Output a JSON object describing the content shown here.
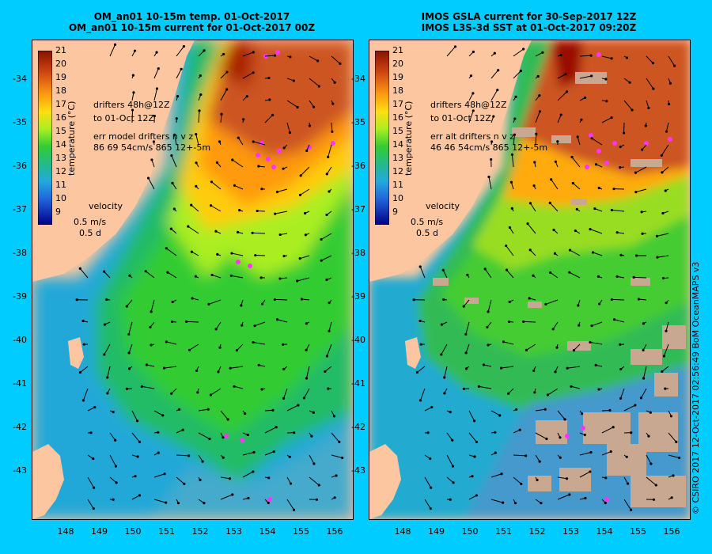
{
  "left_title": {
    "line1": "OM_an01 10-15m temp. 01-Oct-2017",
    "line2": "OM_an01 10-15m current for 01-Oct-2017 00Z"
  },
  "right_title": {
    "line1": "IMOS GSLA current for 30-Sep-2017 12Z",
    "line2": "IMOS L3S-3d SST at 01-Oct-2017 09:20Z"
  },
  "y_ticks": [
    "-34",
    "-35",
    "-36",
    "-37",
    "-38",
    "-39",
    "-40",
    "-41",
    "-42",
    "-43"
  ],
  "x_ticks": [
    "148",
    "149",
    "150",
    "151",
    "152",
    "153",
    "154",
    "155",
    "156"
  ],
  "colorbar": {
    "label": "temperature (°C)",
    "ticks": [
      "21",
      "20",
      "19",
      "18",
      "17",
      "16",
      "15",
      "14",
      "13",
      "12",
      "11",
      "10",
      "9"
    ]
  },
  "left_legend": {
    "drifters1": "drifters 48h@12Z",
    "drifters2": "to 01-Oct 12Z",
    "err1": "err model drifters n v z",
    "err2": "86 69 54cm/s 865 12+-5m",
    "velocity": "velocity",
    "scale": "0.5 m/s",
    "days": "0.5 d"
  },
  "right_legend": {
    "drifters1": "drifters 48h@12Z",
    "drifters2": "to 01-Oct 12Z",
    "err1": "err alt drifters n v z",
    "err2": "46 46 54cm/s 865 12+-5m",
    "velocity": "velocity",
    "scale": "0.5 m/s",
    "days": "0.5 d"
  },
  "credit": "© CSIRO 2017  12-Oct-2017 02:56:49 BoM OceanMAPS v3",
  "colors": {
    "background": "#00ccff",
    "land": "#fcc7a0",
    "drifter": "#ff33ff",
    "cloud": "#c8a890"
  }
}
